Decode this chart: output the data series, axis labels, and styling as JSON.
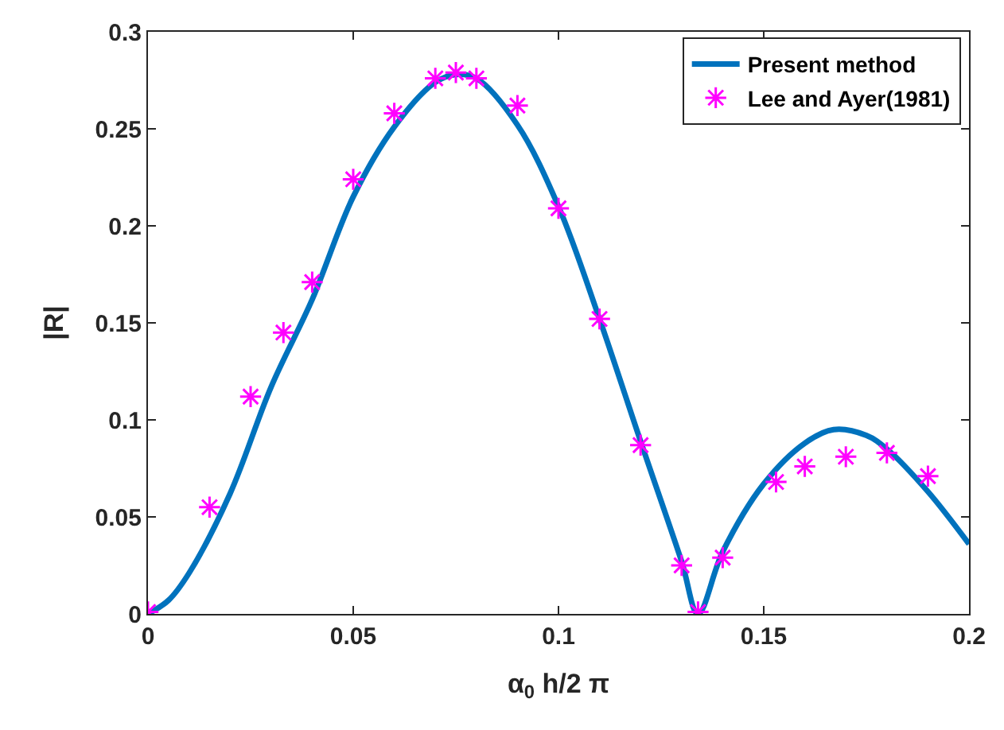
{
  "chart_data": {
    "type": "line",
    "xlabel": "α$_{0}$ h/2 π",
    "ylabel": "|R|",
    "xlim": [
      0,
      0.2
    ],
    "xticks": [
      0,
      0.05,
      0.1,
      0.15,
      0.2
    ],
    "ylim": [
      0,
      0.3
    ],
    "yticks": [
      0,
      0.05,
      0.1,
      0.15,
      0.2,
      0.25,
      0.3
    ],
    "legend": "top right",
    "series": [
      {
        "name": "Present method",
        "color": "#0072bd",
        "marker": "none",
        "line_style": "solid",
        "x": [
          0,
          0.005,
          0.01,
          0.02,
          0.03,
          0.04,
          0.05,
          0.06,
          0.07,
          0.075,
          0.08,
          0.09,
          0.1,
          0.11,
          0.12,
          0.13,
          0.134,
          0.14,
          0.15,
          0.16,
          0.167,
          0.175,
          0.18,
          0.19,
          0.2
        ],
        "values": [
          0,
          0.007,
          0.021,
          0.062,
          0.117,
          0.162,
          0.215,
          0.251,
          0.274,
          0.278,
          0.276,
          0.252,
          0.21,
          0.152,
          0.089,
          0.027,
          0,
          0.032,
          0.067,
          0.088,
          0.095,
          0.092,
          0.085,
          0.063,
          0.036
        ]
      },
      {
        "name": "Lee and Ayer(1981)",
        "type": "scatter",
        "color": "#ff00ff",
        "marker": "cross",
        "x": [
          0,
          0.015,
          0.025,
          0.033,
          0.04,
          0.05,
          0.06,
          0.07,
          0.075,
          0.08,
          0.09,
          0.1,
          0.11,
          0.12,
          0.13,
          0.134,
          0.14,
          0.153,
          0.16,
          0.17,
          0.18,
          0.19
        ],
        "values": [
          0.001,
          0.055,
          0.112,
          0.145,
          0.171,
          0.224,
          0.258,
          0.276,
          0.279,
          0.276,
          0.262,
          0.209,
          0.152,
          0.087,
          0.025,
          0.001,
          0.029,
          0.068,
          0.076,
          0.081,
          0.083,
          0.071
        ]
      }
    ]
  }
}
